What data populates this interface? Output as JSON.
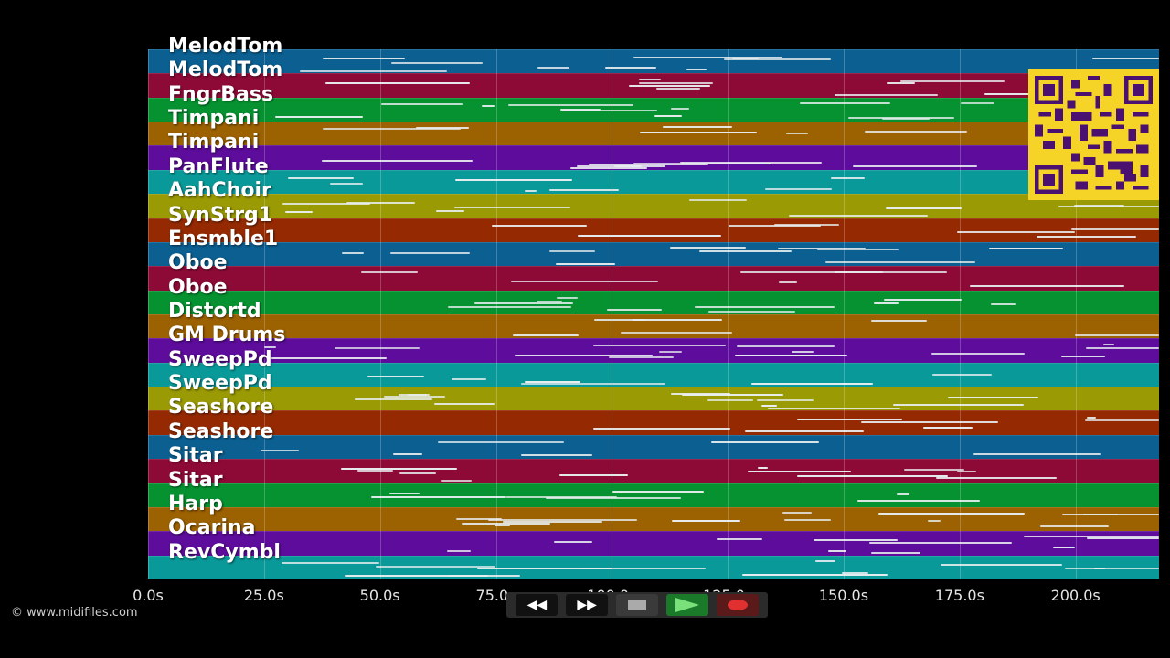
{
  "tracks": [
    {
      "name": "MelodTom",
      "color": "#0b5f91"
    },
    {
      "name": "MelodTom",
      "color": "#8e0a36"
    },
    {
      "name": "FngrBass",
      "color": "#069230"
    },
    {
      "name": "Timpani",
      "color": "#9c6100"
    },
    {
      "name": "Timpani",
      "color": "#5d0c9b"
    },
    {
      "name": "PanFlute",
      "color": "#0a9999"
    },
    {
      "name": "AahChoir",
      "color": "#9a9a05"
    },
    {
      "name": "SynStrg1",
      "color": "#952a02"
    },
    {
      "name": "Ensmble1",
      "color": "#0b5f91"
    },
    {
      "name": "Oboe",
      "color": "#8e0a36"
    },
    {
      "name": "Oboe",
      "color": "#069230"
    },
    {
      "name": "Distortd",
      "color": "#9c6100"
    },
    {
      "name": "GM Drums",
      "color": "#5d0c9b"
    },
    {
      "name": "SweepPd",
      "color": "#0a9999"
    },
    {
      "name": "SweepPd",
      "color": "#9a9a05"
    },
    {
      "name": "Seashore",
      "color": "#952a02"
    },
    {
      "name": "Seashore",
      "color": "#0b5f91"
    },
    {
      "name": "Sitar",
      "color": "#8e0a36"
    },
    {
      "name": "Sitar",
      "color": "#069230"
    },
    {
      "name": "Harp",
      "color": "#9c6100"
    },
    {
      "name": "Ocarina",
      "color": "#5d0c9b"
    },
    {
      "name": "RevCymbl",
      "color": "#0a9999"
    }
  ],
  "time_axis": {
    "max_seconds": 218,
    "ticks": [
      {
        "value": 0,
        "label": "0.0s"
      },
      {
        "value": 25,
        "label": "25.0s"
      },
      {
        "value": 50,
        "label": "50.0s"
      },
      {
        "value": 75,
        "label": "75.0s"
      },
      {
        "value": 100,
        "label": "100.0s"
      },
      {
        "value": 125,
        "label": "125.0s"
      },
      {
        "value": 150,
        "label": "150.0s"
      },
      {
        "value": 175,
        "label": "175.0s"
      },
      {
        "value": 200,
        "label": "200.0s"
      }
    ]
  },
  "copyright": "© www.midifiles.com",
  "transport": {
    "rewind": "◀◀",
    "forward": "▶▶"
  }
}
